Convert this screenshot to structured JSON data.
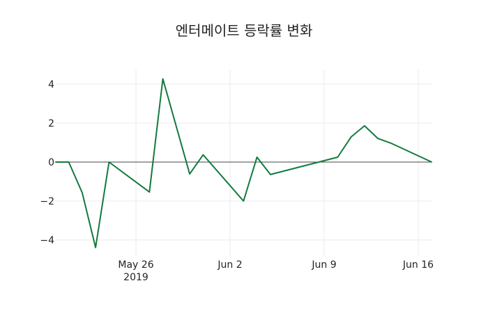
{
  "chart_data": {
    "type": "line",
    "title": "엔터메이트 등락률 변화",
    "xlabel": "",
    "ylabel": "",
    "x": [
      "2019-05-20",
      "2019-05-21",
      "2019-05-22",
      "2019-05-23",
      "2019-05-24",
      "2019-05-27",
      "2019-05-28",
      "2019-05-30",
      "2019-05-31",
      "2019-06-03",
      "2019-06-04",
      "2019-06-05",
      "2019-06-10",
      "2019-06-11",
      "2019-06-12",
      "2019-06-13",
      "2019-06-14",
      "2019-06-17"
    ],
    "series": [
      {
        "name": "등락률",
        "color": "#117a3e",
        "values": [
          0,
          0,
          -1.57,
          -4.39,
          0,
          -1.54,
          4.27,
          -0.61,
          0.37,
          -2.0,
          0.25,
          -0.64,
          0.25,
          1.29,
          1.86,
          1.21,
          0.96,
          0
        ]
      }
    ],
    "yticks": [
      4,
      2,
      0,
      -2,
      -4
    ],
    "ytick_labels": [
      "4",
      "2",
      "0",
      "−2",
      "−4"
    ],
    "xticks": [
      "2019-05-26",
      "2019-06-02",
      "2019-06-09",
      "2019-06-16"
    ],
    "xtick_labels": [
      "May 26",
      "Jun 2",
      "Jun 9",
      "Jun 16"
    ],
    "xtick_sublabel": "2019",
    "ylim": [
      -4.6,
      4.8
    ],
    "grid": true,
    "zero_line": true,
    "legend": false
  },
  "colors": {
    "line": "#117a3e",
    "grid": "#ebebeb",
    "zero_line": "#444444",
    "text": "#222222"
  }
}
